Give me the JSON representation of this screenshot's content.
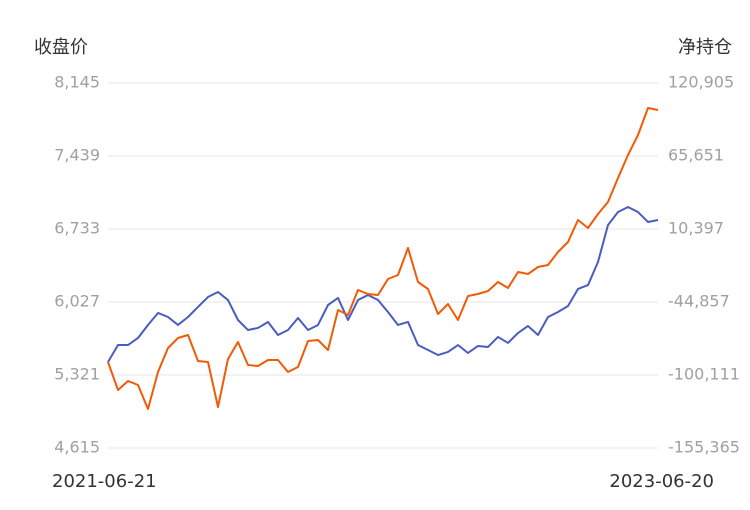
{
  "chart_data": {
    "type": "line",
    "y_label": "收盘价",
    "y2_label": "净持仓",
    "categories": [
      "2021-06-21",
      null,
      null,
      null,
      null,
      null,
      null,
      null,
      null,
      null,
      null,
      null,
      null,
      null,
      null,
      null,
      null,
      null,
      null,
      null,
      null,
      null,
      null,
      null,
      null,
      null,
      null,
      null,
      null,
      null,
      null,
      null,
      null,
      null,
      null,
      null,
      null,
      null,
      null,
      null,
      null,
      null,
      null,
      null,
      null,
      null,
      null,
      null,
      null,
      null,
      null,
      null,
      null,
      null,
      null,
      "2023-06-20"
    ],
    "series": [
      {
        "color": "#4a5cc0",
        "values": [
          5447,
          5611,
          5611,
          5679,
          5805,
          5921,
          5882,
          5805,
          5882,
          5979,
          6075,
          6124,
          6046,
          5853,
          5756,
          5776,
          5834,
          5708,
          5756,
          5872,
          5756,
          5805,
          5998,
          6066,
          5853,
          6046,
          6095,
          6046,
          5930,
          5805,
          5834,
          5611,
          5563,
          5514,
          5544,
          5611,
          5534,
          5602,
          5592,
          5689,
          5631,
          5727,
          5795,
          5708,
          5882,
          5930,
          5988,
          6153,
          6191,
          6414,
          6772,
          6897,
          6946,
          6897,
          6801,
          6820
        ]
      },
      {
        "color": "#f25a05",
        "axis": "y2",
        "values": [
          -90270,
          -111463,
          -104651,
          -107679,
          -125844,
          -97839,
          -79674,
          -72105,
          -69834,
          -89513,
          -90270,
          -124331,
          -87999,
          -75132,
          -92541,
          -93298,
          -88756,
          -88756,
          -97839,
          -94055,
          -74375,
          -73618,
          -81187,
          -50911,
          -54696,
          -35773,
          -38801,
          -39558,
          -27447,
          -24420,
          -3984,
          -29718,
          -35016,
          -53939,
          -46370,
          -58480,
          -40315,
          -38801,
          -36530,
          -29718,
          -34260,
          -22149,
          -23663,
          -18365,
          -16851,
          -7011,
          558,
          17210,
          11154,
          21751,
          30834,
          49000,
          66408,
          81546,
          101982,
          100469
        ]
      }
    ],
    "ylim": [
      4615,
      8145
    ],
    "yticks": [
      {
        "value": 4615,
        "label": "4,615"
      },
      {
        "value": 5321,
        "label": "5,321"
      },
      {
        "value": 6027,
        "label": "6,027"
      },
      {
        "value": 6733,
        "label": "6,733"
      },
      {
        "value": 7439,
        "label": "7,439"
      },
      {
        "value": 8145,
        "label": "8,145"
      }
    ],
    "y2lim": [
      -155365,
      120905
    ],
    "y2ticks": [
      {
        "value": -155365,
        "label": "-155,365"
      },
      {
        "value": -100111,
        "label": "-100,111"
      },
      {
        "value": -44857,
        "label": "-44,857"
      },
      {
        "value": 10397,
        "label": "10,397"
      },
      {
        "value": 65651,
        "label": "65,651"
      },
      {
        "value": 120905,
        "label": "120,905"
      }
    ],
    "grid": true
  }
}
